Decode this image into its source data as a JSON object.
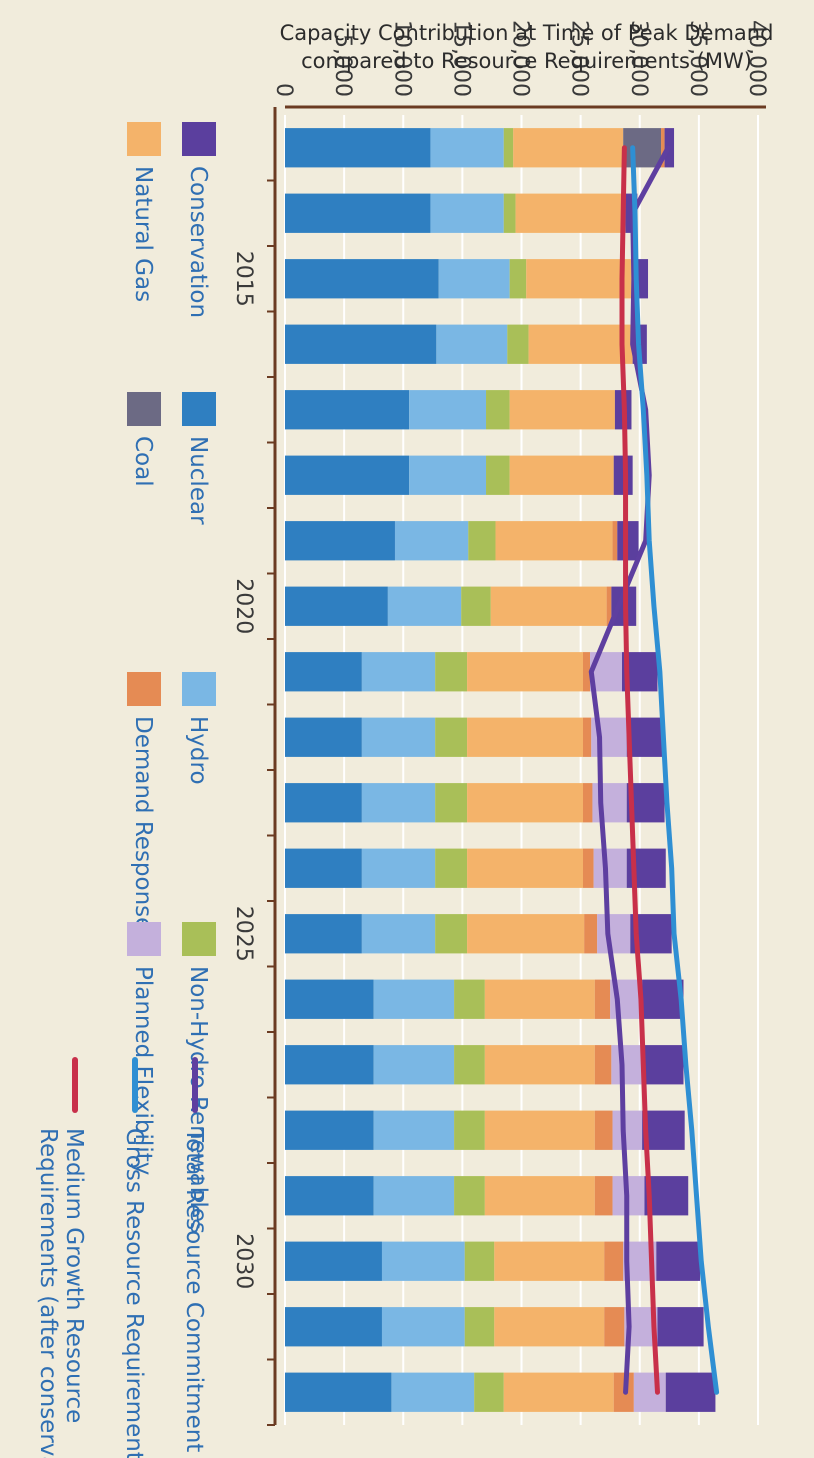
{
  "chart_data": {
    "type": "bar",
    "stacked": true,
    "orientation": "vertical",
    "ylabel_line1": "Capacity Contribution at Time of Peak Demand",
    "ylabel_line2": "compared to Resource Requirements (MW)",
    "ylim": [
      0,
      40000
    ],
    "yticks": [
      0,
      5000,
      10000,
      15000,
      20000,
      25000,
      30000,
      35000,
      40000
    ],
    "ytick_labels": [
      "0",
      "5,000",
      "10,000",
      "15,000",
      "20,000",
      "25,000",
      "30,000",
      "35,000",
      "40,000"
    ],
    "x": [
      2013,
      2014,
      2015,
      2016,
      2017,
      2018,
      2019,
      2020,
      2021,
      2022,
      2023,
      2024,
      2025,
      2026,
      2027,
      2028,
      2029,
      2030,
      2031,
      2032
    ],
    "xtick_labels": [
      {
        "year": 2015,
        "label": "2015"
      },
      {
        "year": 2020,
        "label": "2020"
      },
      {
        "year": 2025,
        "label": "2025"
      },
      {
        "year": 2030,
        "label": "2030"
      }
    ],
    "grid": true,
    "series": [
      {
        "name": "Nuclear",
        "color": "#2f7fc1",
        "values": [
          12300,
          12300,
          13000,
          12800,
          10500,
          10500,
          9300,
          8700,
          6500,
          6500,
          6500,
          6500,
          6500,
          7500,
          7500,
          7500,
          7500,
          8200,
          8200,
          9000
        ]
      },
      {
        "name": "Hydro",
        "color": "#7ab7e4",
        "values": [
          6200,
          6200,
          6000,
          6000,
          6500,
          6500,
          6200,
          6200,
          6200,
          6200,
          6200,
          6200,
          6200,
          6800,
          6800,
          6800,
          6800,
          7000,
          7000,
          7000
        ]
      },
      {
        "name": "Non-Hydro Renewables",
        "color": "#a9bf58",
        "values": [
          800,
          1000,
          1400,
          1800,
          2000,
          2000,
          2300,
          2500,
          2700,
          2700,
          2700,
          2700,
          2700,
          2600,
          2600,
          2600,
          2600,
          2500,
          2500,
          2500
        ]
      },
      {
        "name": "Natural Gas",
        "color": "#f4b36a",
        "values": [
          9300,
          9300,
          9200,
          8800,
          8900,
          8800,
          9900,
          9800,
          9800,
          9800,
          9800,
          9800,
          9900,
          9300,
          9300,
          9300,
          9300,
          9300,
          9300,
          9300
        ]
      },
      {
        "name": "Coal",
        "color": "#6c6a84",
        "values": [
          3200,
          0,
          0,
          0,
          0,
          0,
          0,
          0,
          0,
          0,
          0,
          0,
          0,
          0,
          0,
          0,
          0,
          0,
          0,
          0
        ]
      },
      {
        "name": "Demand Response",
        "color": "#e58b54",
        "values": [
          300,
          0,
          0,
          0,
          0,
          0,
          400,
          400,
          600,
          700,
          800,
          900,
          1100,
          1300,
          1400,
          1500,
          1500,
          1600,
          1700,
          1700
        ]
      },
      {
        "name": "Planned Flexibility",
        "color": "#c4b0dc",
        "values": [
          0,
          0,
          0,
          0,
          0,
          0,
          0,
          0,
          2700,
          3000,
          2900,
          2800,
          2800,
          2700,
          2600,
          2500,
          2700,
          2800,
          2800,
          2700
        ]
      },
      {
        "name": "Conservation",
        "color": "#5b3f9e",
        "values": [
          800,
          1000,
          1100,
          1200,
          1400,
          1600,
          1800,
          2100,
          3000,
          3100,
          3200,
          3300,
          3500,
          3500,
          3500,
          3600,
          3700,
          3700,
          3900,
          4200
        ]
      }
    ],
    "lines": [
      {
        "name": "Total Resource Commitment",
        "color": "#5e3fa0",
        "values": [
          32400,
          29400,
          29500,
          29400,
          30500,
          30800,
          30500,
          28200,
          25900,
          26600,
          26700,
          27100,
          27300,
          28100,
          28500,
          28600,
          28900,
          28900,
          29100,
          28800
        ]
      },
      {
        "name": "Gross Resource Requirements",
        "color": "#2f8fd3",
        "values": [
          29400,
          29600,
          29700,
          29900,
          30300,
          30600,
          30800,
          31200,
          31700,
          32000,
          32300,
          32700,
          32900,
          33500,
          33900,
          34400,
          34800,
          35200,
          35800,
          36500
        ]
      },
      {
        "name": "Medium Growth Resource Requirements (after conservation)",
        "color": "#c8304a",
        "values": [
          28700,
          28600,
          28500,
          28500,
          28700,
          28800,
          28800,
          28800,
          28900,
          29100,
          29300,
          29500,
          29700,
          30100,
          30300,
          30500,
          30800,
          31000,
          31200,
          31500
        ]
      }
    ],
    "legend": {
      "placement": "bottom",
      "swatch_items": [
        "Conservation",
        "Nuclear",
        "Hydro",
        "Non-Hydro Renewables",
        "Natural Gas",
        "Coal",
        "Demand Response",
        "Planned Flexibility"
      ],
      "line_items": [
        {
          "series": "Total Resource Commitment",
          "lines": [
            "Total Resource Commitment"
          ]
        },
        {
          "series": "Gross Resource Requirements",
          "lines": [
            "Gross Resource Requirements"
          ]
        },
        {
          "series": "Medium Growth Resource Requirements (after conservation)",
          "lines": [
            "Medium Growth Resource",
            "Requirements (after conservation)"
          ]
        }
      ]
    }
  }
}
